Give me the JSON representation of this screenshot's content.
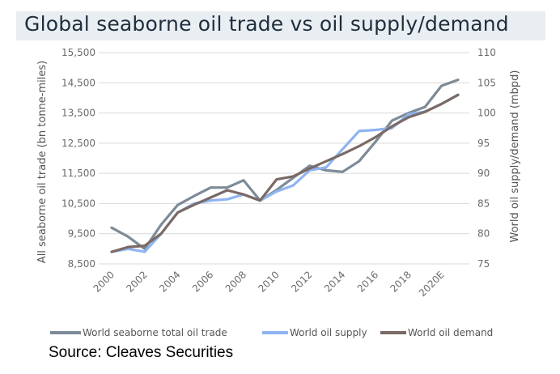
{
  "title": "Global seaborne oil trade vs oil supply/demand",
  "source": "Source: Cleaves Securities",
  "colors": {
    "seaborne": "#7d8b98",
    "supply": "#8fb4f2",
    "demand": "#7a6a65",
    "grid": "#d9d9d9",
    "title_band": "#e9eef2"
  },
  "chart_data": {
    "type": "line",
    "title": "Global seaborne oil trade vs oil supply/demand",
    "ylabel": "All seaborne oil trade (bn tonne-miles)",
    "y2label": "World oil supply/demand (mbpd)",
    "ylim": [
      8500,
      15500
    ],
    "y2lim": [
      75,
      110
    ],
    "y_ticks": [
      "8,500",
      "9,500",
      "10,500",
      "11,500",
      "12,500",
      "13,500",
      "14,500",
      "15,500"
    ],
    "y2_ticks": [
      "75",
      "80",
      "85",
      "90",
      "95",
      "100",
      "105",
      "110"
    ],
    "x": [
      2000,
      2001,
      2002,
      2003,
      2004,
      2005,
      2006,
      2007,
      2008,
      2009,
      2010,
      2011,
      2012,
      2013,
      2014,
      2015,
      2016,
      2017,
      2018,
      2019,
      2020,
      2021
    ],
    "x_tick_labels": [
      "2000",
      "2002",
      "2004",
      "2006",
      "2008",
      "2010",
      "2012",
      "2014",
      "2016",
      "2018",
      "2020E"
    ],
    "x_tick_years": [
      2000,
      2002,
      2004,
      2006,
      2008,
      2010,
      2012,
      2014,
      2016,
      2018,
      2020
    ],
    "grid": "horizontal",
    "legend_position": "bottom",
    "series": [
      {
        "name": "World seaborne total oil trade",
        "axis": "left",
        "color": "#7d8b98",
        "values": [
          9700,
          9400,
          9000,
          9800,
          10450,
          10750,
          11030,
          11030,
          11270,
          10600,
          10950,
          11350,
          11750,
          11600,
          11550,
          11900,
          12550,
          13250,
          13500,
          13700,
          14400,
          14600
        ]
      },
      {
        "name": "World oil supply",
        "axis": "right",
        "color": "#8fb4f2",
        "values": [
          77.0,
          77.5,
          77.0,
          80.0,
          83.5,
          85.0,
          85.5,
          85.7,
          86.5,
          85.5,
          87.0,
          88.0,
          90.5,
          91.0,
          94.0,
          97.0,
          97.2,
          97.5,
          99.8,
          100.2,
          101.5,
          103.0
        ]
      },
      {
        "name": "World oil demand",
        "axis": "right",
        "color": "#7a6a65",
        "values": [
          77.0,
          77.8,
          78.0,
          80.0,
          83.5,
          84.8,
          86.0,
          87.2,
          86.5,
          85.5,
          89.0,
          89.5,
          90.8,
          92.0,
          93.2,
          94.5,
          96.0,
          97.8,
          99.3,
          100.2,
          101.5,
          103.0
        ]
      }
    ]
  }
}
